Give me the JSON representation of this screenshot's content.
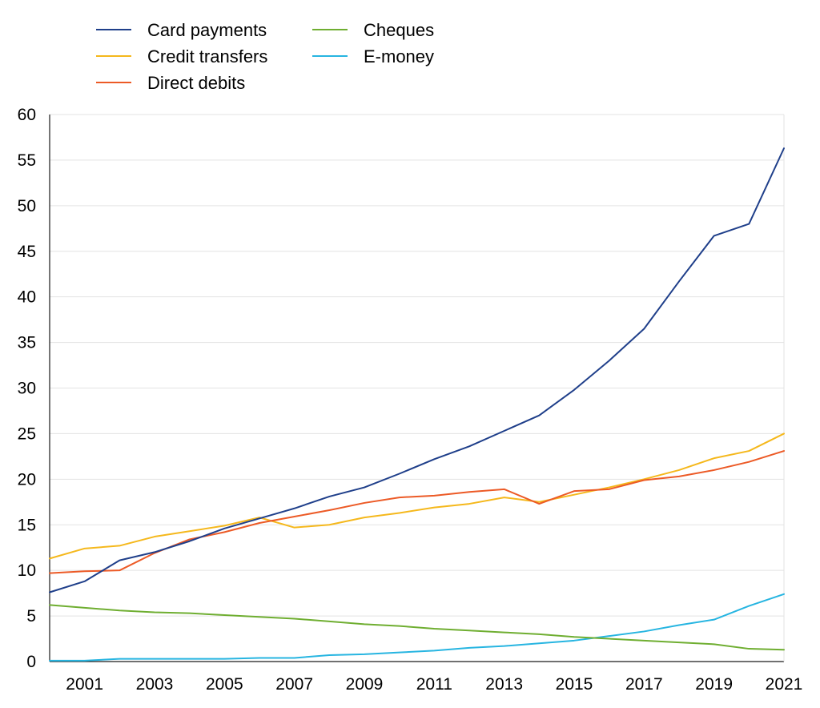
{
  "chart_data": {
    "type": "line",
    "title": "",
    "xlabel": "",
    "ylabel": "",
    "x": [
      2000,
      2001,
      2002,
      2003,
      2004,
      2005,
      2006,
      2007,
      2008,
      2009,
      2010,
      2011,
      2012,
      2013,
      2014,
      2015,
      2016,
      2017,
      2018,
      2019,
      2020,
      2021
    ],
    "xlim": [
      2000,
      2021
    ],
    "x_ticks": [
      "2001",
      "2003",
      "2005",
      "2007",
      "2009",
      "2011",
      "2013",
      "2015",
      "2017",
      "2019",
      "2021"
    ],
    "ylim": [
      0,
      60
    ],
    "y_ticks": [
      "0",
      "5",
      "10",
      "15",
      "20",
      "25",
      "30",
      "35",
      "40",
      "45",
      "50",
      "55",
      "60"
    ],
    "grid": "horizontal",
    "legend_position": "top-left",
    "series": [
      {
        "name": "Card payments",
        "color": "#1f3f8a",
        "values": [
          7.6,
          8.8,
          11.1,
          12.0,
          13.2,
          14.6,
          15.7,
          16.8,
          18.1,
          19.1,
          20.6,
          22.2,
          23.6,
          25.3,
          27.0,
          29.8,
          33.0,
          36.5,
          41.7,
          46.7,
          48.0,
          56.3
        ]
      },
      {
        "name": "Credit transfers",
        "color": "#f5b81c",
        "values": [
          11.3,
          12.4,
          12.7,
          13.7,
          14.3,
          14.9,
          15.8,
          14.7,
          15.0,
          15.8,
          16.3,
          16.9,
          17.3,
          18.0,
          17.5,
          18.3,
          19.1,
          20.0,
          21.0,
          22.3,
          23.1,
          25.0
        ]
      },
      {
        "name": "Direct debits",
        "color": "#ec5a26",
        "values": [
          9.7,
          9.9,
          10.0,
          11.9,
          13.4,
          14.2,
          15.2,
          15.9,
          16.6,
          17.4,
          18.0,
          18.2,
          18.6,
          18.9,
          17.3,
          18.7,
          18.9,
          19.9,
          20.3,
          21.0,
          21.9,
          23.1
        ]
      },
      {
        "name": "Cheques",
        "color": "#6fae31",
        "values": [
          6.2,
          5.9,
          5.6,
          5.4,
          5.3,
          5.1,
          4.9,
          4.7,
          4.4,
          4.1,
          3.9,
          3.6,
          3.4,
          3.2,
          3.0,
          2.7,
          2.5,
          2.3,
          2.1,
          1.9,
          1.4,
          1.3
        ]
      },
      {
        "name": "E-money",
        "color": "#27b5e1",
        "values": [
          0.1,
          0.1,
          0.3,
          0.3,
          0.3,
          0.3,
          0.4,
          0.4,
          0.7,
          0.8,
          1.0,
          1.2,
          1.5,
          1.7,
          2.0,
          2.3,
          2.8,
          3.3,
          4.0,
          4.6,
          6.1,
          7.4
        ]
      }
    ]
  }
}
